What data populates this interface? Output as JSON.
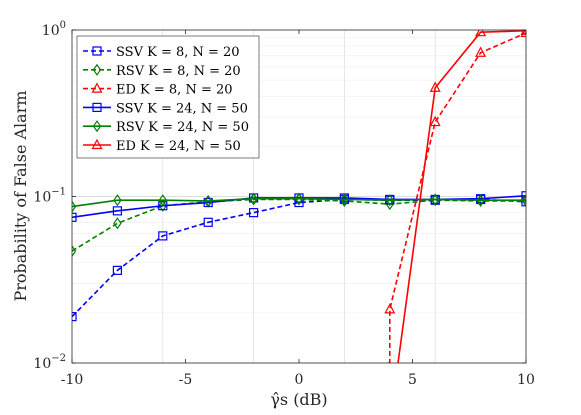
{
  "chart_data": {
    "type": "line",
    "xlabel": "γ̂s (dB)",
    "ylabel": "Probability of False Alarm",
    "xlim": [
      -10,
      10
    ],
    "ylim": [
      0.01,
      1
    ],
    "yscale": "log",
    "xticks": [
      "-10",
      "-5",
      "0",
      "5",
      "10"
    ],
    "yticks": [
      {
        "base": "10",
        "exp": "0"
      },
      {
        "base": "10",
        "exp": "−1"
      },
      {
        "base": "10",
        "exp": "−2"
      }
    ],
    "grid": true,
    "legend_position": "top-left",
    "x": [
      -10,
      -8,
      -6,
      -4,
      -2,
      0,
      2,
      4,
      6,
      8,
      10
    ],
    "series": [
      {
        "name": "SSV K = 8, N = 20",
        "color": "#0000ff",
        "dash": true,
        "marker": "square",
        "values": [
          0.019,
          0.036,
          0.058,
          0.07,
          0.08,
          0.092,
          0.096,
          0.095,
          0.095,
          0.096,
          0.093
        ]
      },
      {
        "name": "RSV K = 8, N = 20",
        "color": "#008000",
        "dash": true,
        "marker": "diamond",
        "values": [
          0.047,
          0.069,
          0.088,
          0.093,
          0.096,
          0.096,
          0.094,
          0.09,
          0.095,
          0.094,
          0.094
        ]
      },
      {
        "name": "ED K = 8, N = 20",
        "color": "#ff0000",
        "dash": true,
        "marker": "triangle",
        "values": [
          null,
          null,
          null,
          null,
          null,
          null,
          null,
          0.021,
          0.28,
          0.73,
          0.96
        ]
      },
      {
        "name": "SSV K = 24, N = 50",
        "color": "#0000ff",
        "dash": false,
        "marker": "square",
        "values": [
          0.075,
          0.082,
          0.088,
          0.092,
          0.098,
          0.098,
          0.098,
          0.096,
          0.096,
          0.097,
          0.101
        ]
      },
      {
        "name": "RSV K = 24, N = 50",
        "color": "#008000",
        "dash": false,
        "marker": "diamond",
        "values": [
          0.087,
          0.095,
          0.095,
          0.094,
          0.097,
          0.097,
          0.096,
          0.095,
          0.096,
          0.095,
          0.095
        ]
      },
      {
        "name": "ED K = 24, N = 50",
        "color": "#ff0000",
        "dash": false,
        "marker": "triangle",
        "values": [
          null,
          null,
          null,
          null,
          null,
          null,
          null,
          null,
          0.45,
          0.97,
          0.99
        ]
      }
    ],
    "segments_below_axis": [
      {
        "series": 2,
        "x": [
          3.6,
          4.0
        ]
      },
      {
        "series": 5,
        "x": [
          4.35,
          6.0
        ]
      }
    ]
  }
}
